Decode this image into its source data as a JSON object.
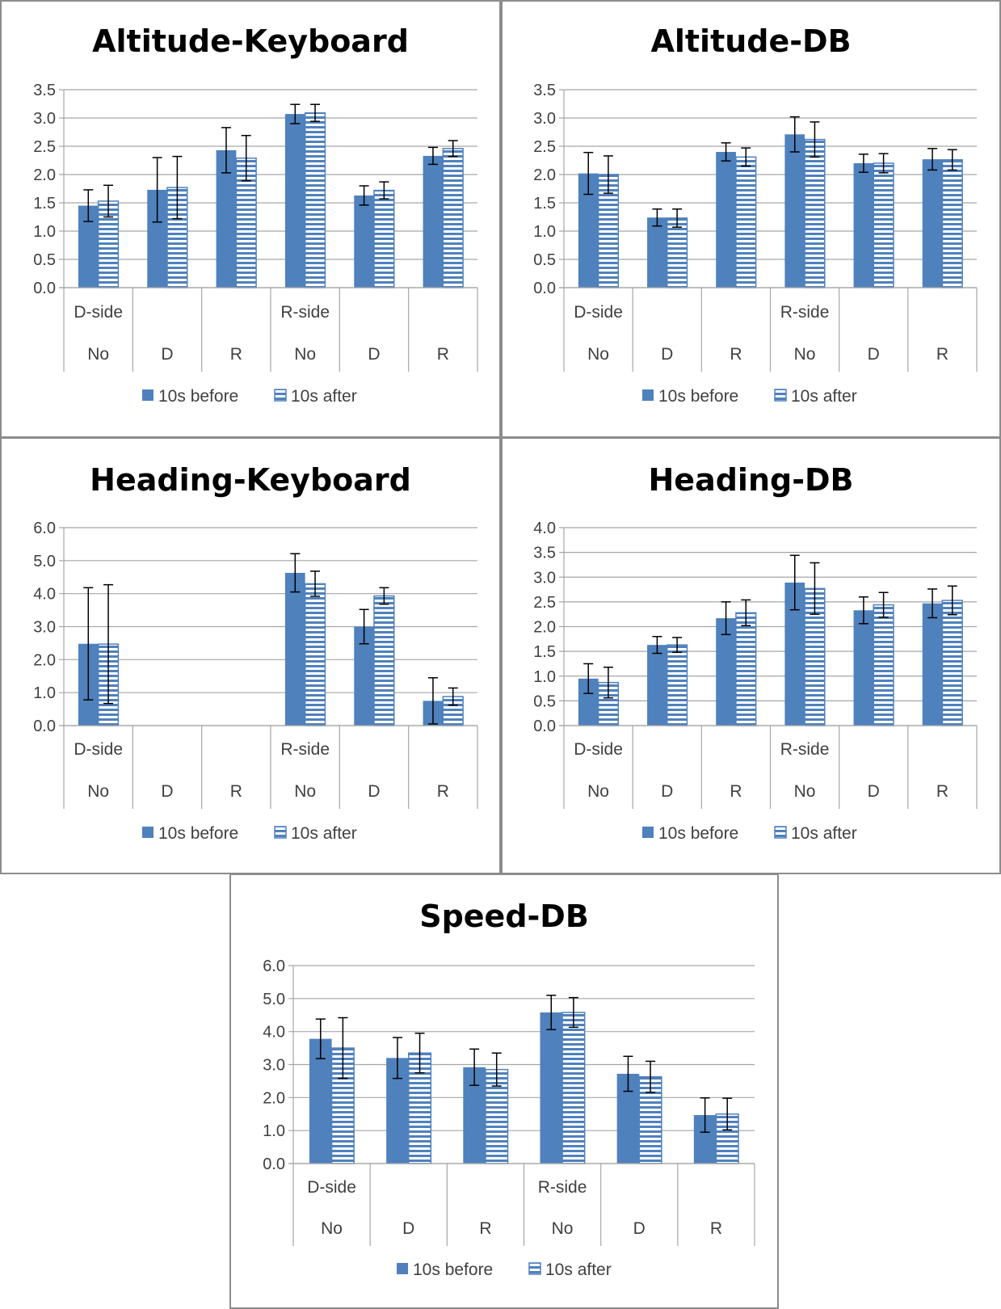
{
  "colors": {
    "bar": "#4f81bd",
    "error": "#000000",
    "grid": "#a6a6a6",
    "text": "#404040"
  },
  "legend": {
    "before": "10s before",
    "after": "10s after"
  },
  "chart_data": [
    {
      "type": "bar",
      "title": "Altitude-Keyboard",
      "group_labels": [
        "D-side",
        "R-side"
      ],
      "categories": [
        "No",
        "D",
        "R",
        "No",
        "D",
        "R"
      ],
      "yticks": [
        "0.0",
        "0.5",
        "1.0",
        "1.5",
        "2.0",
        "2.5",
        "3.0",
        "3.5"
      ],
      "ylim": [
        0,
        3.5
      ],
      "legend_position": "bottom",
      "grid": true,
      "series": [
        {
          "name": "10s before",
          "values": [
            1.45,
            1.73,
            2.43,
            3.07,
            1.63,
            2.33
          ],
          "errors": [
            0.28,
            0.57,
            0.4,
            0.17,
            0.17,
            0.15
          ]
        },
        {
          "name": "10s after",
          "values": [
            1.53,
            1.77,
            2.29,
            3.09,
            1.72,
            2.46
          ],
          "errors": [
            0.28,
            0.55,
            0.4,
            0.15,
            0.15,
            0.14
          ]
        }
      ]
    },
    {
      "type": "bar",
      "title": "Altitude-DB",
      "group_labels": [
        "D-side",
        "R-side"
      ],
      "categories": [
        "No",
        "D",
        "R",
        "No",
        "D",
        "R"
      ],
      "yticks": [
        "0.0",
        "0.5",
        "1.0",
        "1.5",
        "2.0",
        "2.5",
        "3.0",
        "3.5"
      ],
      "ylim": [
        0,
        3.5
      ],
      "legend_position": "bottom",
      "grid": true,
      "series": [
        {
          "name": "10s before",
          "values": [
            2.02,
            1.24,
            2.4,
            2.71,
            2.2,
            2.27
          ],
          "errors": [
            0.37,
            0.15,
            0.16,
            0.31,
            0.16,
            0.19
          ]
        },
        {
          "name": "10s after",
          "values": [
            2.0,
            1.23,
            2.31,
            2.62,
            2.2,
            2.26
          ],
          "errors": [
            0.33,
            0.16,
            0.16,
            0.31,
            0.17,
            0.18
          ]
        }
      ]
    },
    {
      "type": "bar",
      "title": "Heading-Keyboard",
      "group_labels": [
        "D-side",
        "R-side"
      ],
      "categories": [
        "No",
        "D",
        "R",
        "No",
        "D",
        "R"
      ],
      "yticks": [
        "0.0",
        "1.0",
        "2.0",
        "3.0",
        "4.0",
        "5.0",
        "6.0"
      ],
      "ylim": [
        0,
        6
      ],
      "legend_position": "bottom",
      "grid": true,
      "series": [
        {
          "name": "10s before",
          "values": [
            2.48,
            0,
            0,
            4.63,
            3.0,
            0.75
          ],
          "errors": [
            1.7,
            0,
            0,
            0.58,
            0.52,
            0.7
          ]
        },
        {
          "name": "10s after",
          "values": [
            2.47,
            0,
            0,
            4.3,
            3.93,
            0.88
          ],
          "errors": [
            1.8,
            0,
            0,
            0.38,
            0.25,
            0.26
          ]
        }
      ]
    },
    {
      "type": "bar",
      "title": "Heading-DB",
      "group_labels": [
        "D-side",
        "R-side"
      ],
      "categories": [
        "No",
        "D",
        "R",
        "No",
        "D",
        "R"
      ],
      "yticks": [
        "0.0",
        "0.5",
        "1.0",
        "1.5",
        "2.0",
        "2.5",
        "3.0",
        "3.5",
        "4.0"
      ],
      "ylim": [
        0,
        4
      ],
      "legend_position": "bottom",
      "grid": true,
      "series": [
        {
          "name": "10s before",
          "values": [
            0.95,
            1.63,
            2.17,
            2.89,
            2.33,
            2.47
          ],
          "errors": [
            0.3,
            0.17,
            0.33,
            0.55,
            0.27,
            0.29
          ]
        },
        {
          "name": "10s after",
          "values": [
            0.87,
            1.63,
            2.28,
            2.77,
            2.44,
            2.53
          ],
          "errors": [
            0.31,
            0.15,
            0.26,
            0.52,
            0.25,
            0.29
          ]
        }
      ]
    },
    {
      "type": "bar",
      "title": "Speed-DB",
      "group_labels": [
        "D-side",
        "R-side"
      ],
      "categories": [
        "No",
        "D",
        "R",
        "No",
        "D",
        "R"
      ],
      "yticks": [
        "0.0",
        "1.0",
        "2.0",
        "3.0",
        "4.0",
        "5.0",
        "6.0"
      ],
      "ylim": [
        0,
        6
      ],
      "legend_position": "bottom",
      "grid": true,
      "series": [
        {
          "name": "10s before",
          "values": [
            3.78,
            3.2,
            2.92,
            4.58,
            2.72,
            1.47
          ],
          "errors": [
            0.6,
            0.62,
            0.55,
            0.52,
            0.53,
            0.52
          ]
        },
        {
          "name": "10s after",
          "values": [
            3.5,
            3.35,
            2.85,
            4.58,
            2.63,
            1.5
          ],
          "errors": [
            0.92,
            0.6,
            0.5,
            0.45,
            0.47,
            0.48
          ]
        }
      ]
    }
  ]
}
